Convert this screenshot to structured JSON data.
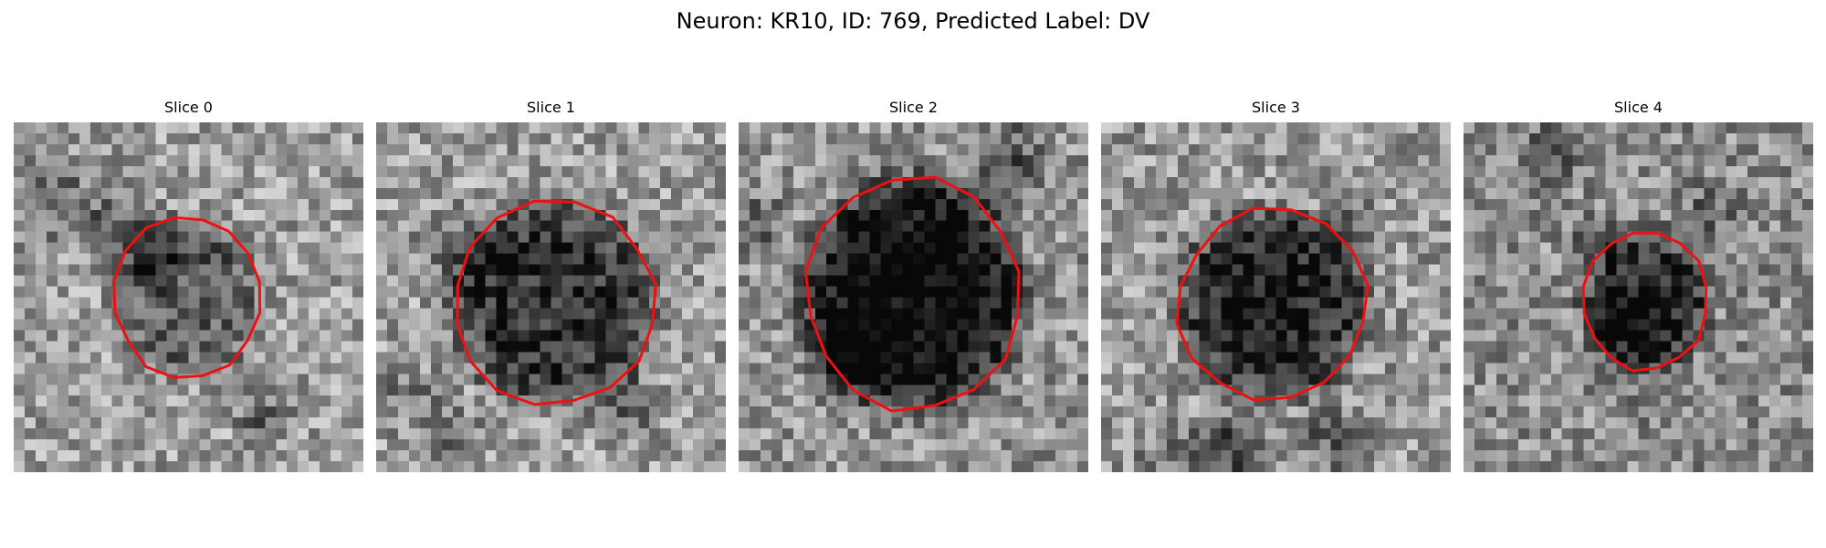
{
  "figure": {
    "title": "Neuron: KR10, ID: 769, Predicted Label: DV"
  },
  "contour_color": "#ee1111",
  "panels": [
    {
      "title": "Slice 0",
      "seed": 11,
      "mean": 0.62,
      "cell": {
        "r": 0.39,
        "dark": 0.28
      }
    },
    {
      "title": "Slice 1",
      "seed": 23,
      "mean": 0.62,
      "cell": {
        "r": 0.58,
        "dark": 0.45
      }
    },
    {
      "title": "Slice 2",
      "seed": 37,
      "mean": 0.58,
      "cell": {
        "r": 0.66,
        "dark": 0.62
      }
    },
    {
      "title": "Slice 3",
      "seed": 41,
      "mean": 0.6,
      "cell": {
        "r": 0.55,
        "dark": 0.5
      }
    },
    {
      "title": "Slice 4",
      "seed": 53,
      "mean": 0.55,
      "cell": {
        "r": 0.36,
        "dark": 0.4
      }
    }
  ]
}
